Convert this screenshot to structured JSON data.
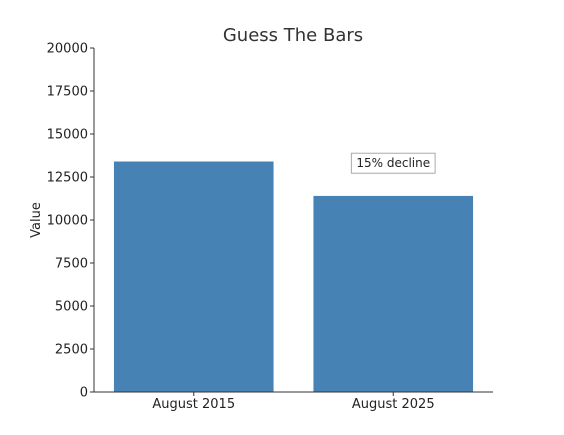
{
  "chart_data": {
    "type": "bar",
    "title": "Guess The Bars",
    "xlabel": "",
    "ylabel": "Value",
    "categories": [
      "August 2015",
      "August 2025"
    ],
    "values": [
      13400,
      11400
    ],
    "ylim": [
      0,
      20000
    ],
    "yticks": [
      0,
      2500,
      5000,
      7500,
      10000,
      12500,
      15000,
      17500,
      20000
    ],
    "bar_color": "#4682b4",
    "grid": false,
    "annotations": [
      {
        "text": "15% decline",
        "category": "August 2025",
        "value": 13300
      }
    ]
  }
}
